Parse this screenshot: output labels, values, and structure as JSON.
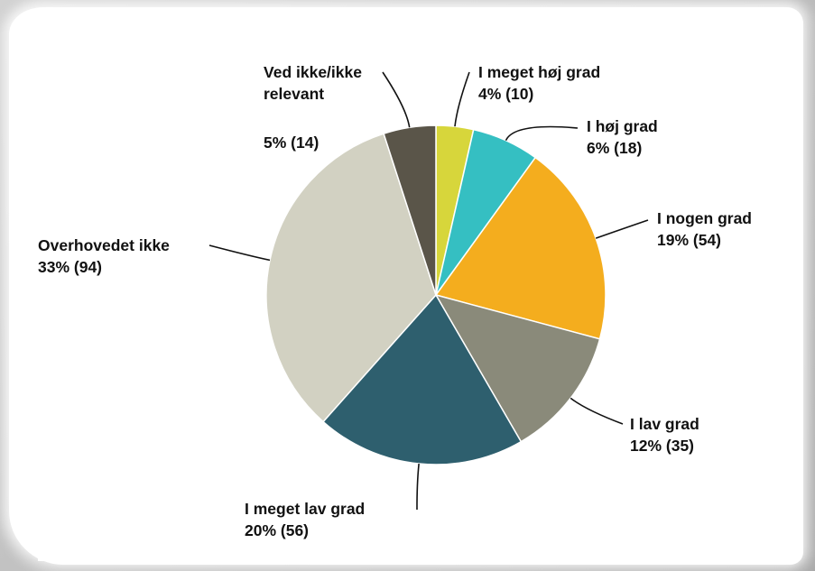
{
  "chart_data": {
    "type": "pie",
    "title": "",
    "slices": [
      {
        "label": "I meget høj grad",
        "percent_label": "4% (10)",
        "value": 10,
        "color": "#d7d63b"
      },
      {
        "label": "I høj grad",
        "percent_label": "6% (18)",
        "value": 18,
        "color": "#35bfc2"
      },
      {
        "label": "I nogen grad",
        "percent_label": "19% (54)",
        "value": 54,
        "color": "#f4ad1e"
      },
      {
        "label": "I lav grad",
        "percent_label": "12% (35)",
        "value": 35,
        "color": "#8a8a7a"
      },
      {
        "label": "I meget lav grad",
        "percent_label": "20% (56)",
        "value": 56,
        "color": "#2e5f6e"
      },
      {
        "label": "Overhovedet ikke",
        "percent_label": "33% (94)",
        "value": 94,
        "color": "#d2d1c2"
      },
      {
        "label": "Ved ikke/ikke relevant",
        "label_lines": [
          "Ved ikke/ikke",
          "relevant"
        ],
        "percent_label": "5% (14)",
        "value": 14,
        "color": "#5a5549"
      }
    ]
  }
}
